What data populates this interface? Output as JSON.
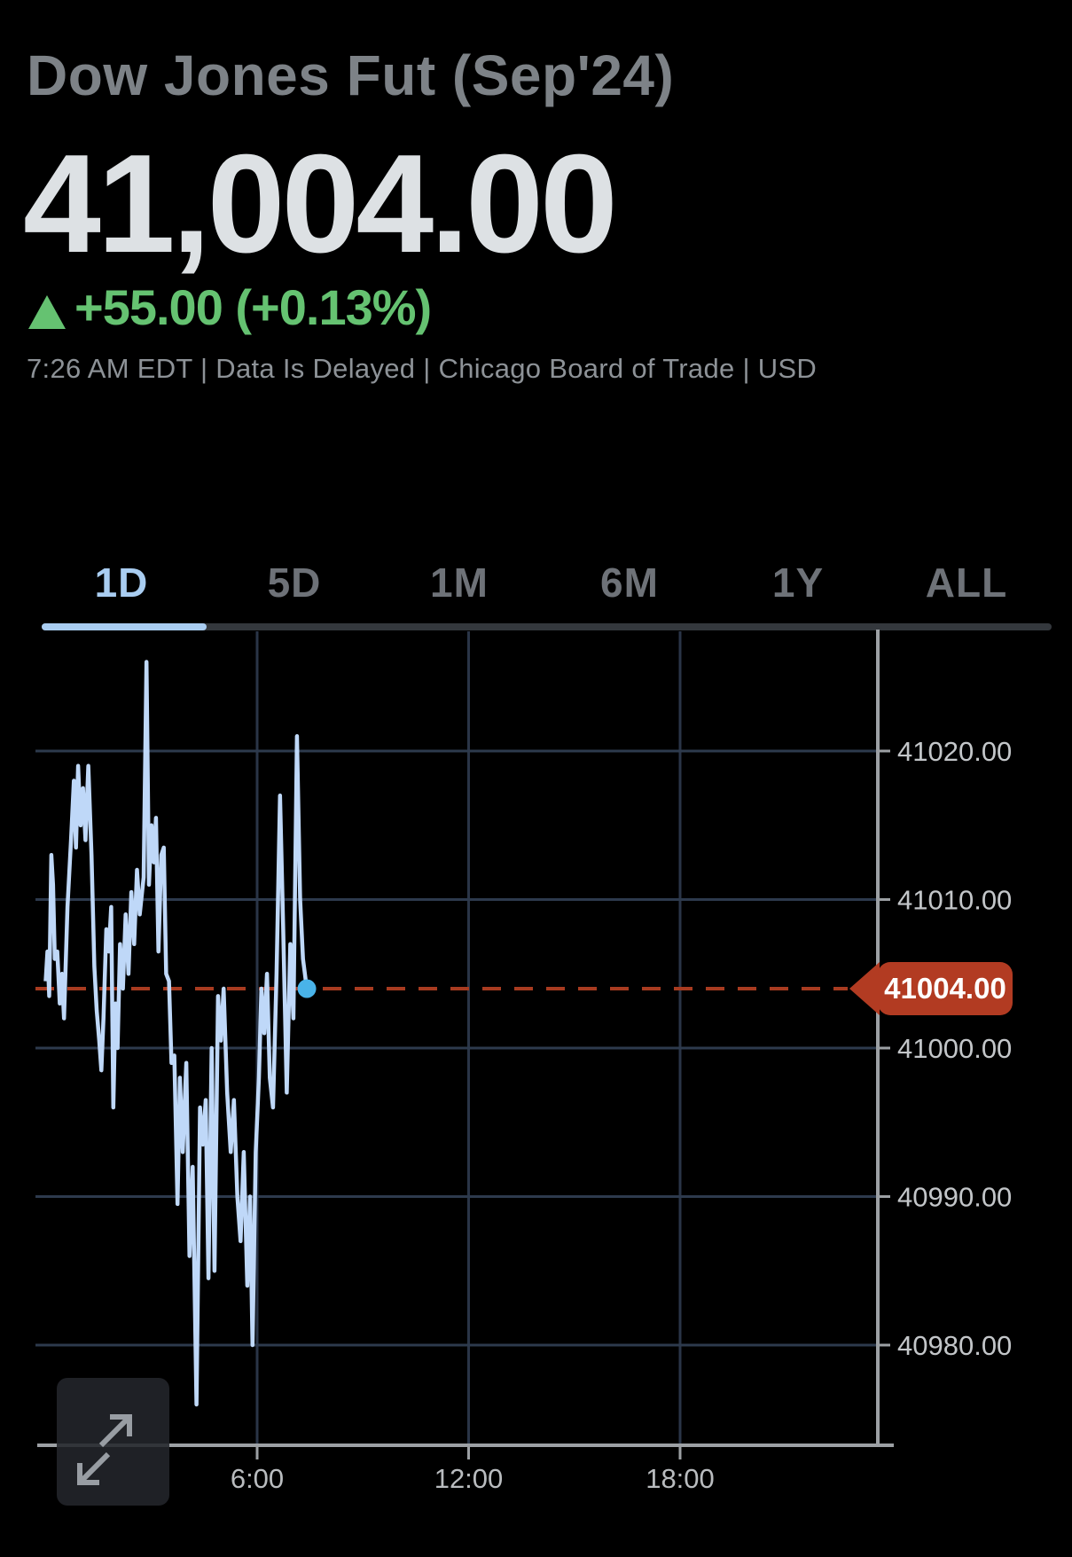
{
  "header": {
    "title": "Dow Jones Fut (Sep'24)",
    "price": "41,004.00",
    "change": "+55.00 (+0.13%)",
    "change_direction": "up",
    "status_line": "7:26 AM EDT | Data Is Delayed | Chicago Board of Trade | USD"
  },
  "tabs": [
    {
      "label": "1D",
      "active": true
    },
    {
      "label": "5D",
      "active": false
    },
    {
      "label": "1M",
      "active": false
    },
    {
      "label": "6M",
      "active": false
    },
    {
      "label": "1Y",
      "active": false
    },
    {
      "label": "ALL",
      "active": false
    }
  ],
  "colors": {
    "up_green": "#65c271",
    "price_text": "#dde1e4",
    "title_gray": "#7d8287",
    "line_blue": "#bfd8f8",
    "dot_blue": "#49b3e9",
    "last_price_red": "#b23b22",
    "dashed_red": "#a83b20",
    "grid": "#2d3a4d",
    "axis": "#9ca0a4",
    "tick_label": "#c3c6c9",
    "active_tab_blue": "#a9cdf1",
    "inactive_tab": "#6e7278"
  },
  "icons": {
    "up_arrow": "up-triangle",
    "expand": "diagonal-expand-arrows"
  },
  "chart_data": {
    "type": "line",
    "title": "Dow Jones Fut (Sep'24) 1D intraday",
    "x_unit": "hour_of_day",
    "xlim": [
      0,
      24
    ],
    "ylim": [
      40973,
      41028
    ],
    "grid": true,
    "x_ticks": [
      {
        "t": 6,
        "label": "6:00"
      },
      {
        "t": 12,
        "label": "12:00"
      },
      {
        "t": 18,
        "label": "18:00"
      }
    ],
    "y_ticks": [
      {
        "v": 41020,
        "label": "41020.00"
      },
      {
        "v": 41010,
        "label": "41010.00"
      },
      {
        "v": 41000,
        "label": "41000.00"
      },
      {
        "v": 40990,
        "label": "40990.00"
      },
      {
        "v": 40980,
        "label": "40980.00"
      }
    ],
    "last_price": 41004.0,
    "last_price_label": "41004.00",
    "last_time": 7.41,
    "points": [
      [
        0.0,
        41004.5
      ],
      [
        0.05,
        41006.5
      ],
      [
        0.1,
        41003.5
      ],
      [
        0.16,
        41013
      ],
      [
        0.21,
        41011
      ],
      [
        0.26,
        41006
      ],
      [
        0.33,
        41006.5
      ],
      [
        0.4,
        41003
      ],
      [
        0.46,
        41005
      ],
      [
        0.52,
        41002
      ],
      [
        0.62,
        41009.5
      ],
      [
        0.72,
        41014
      ],
      [
        0.8,
        41018
      ],
      [
        0.86,
        41013.5
      ],
      [
        0.92,
        41019
      ],
      [
        0.99,
        41015
      ],
      [
        1.06,
        41017.5
      ],
      [
        1.13,
        41014
      ],
      [
        1.21,
        41019
      ],
      [
        1.3,
        41013
      ],
      [
        1.38,
        41005.5
      ],
      [
        1.45,
        41002.5
      ],
      [
        1.52,
        41000.5
      ],
      [
        1.58,
        40998.5
      ],
      [
        1.64,
        41002
      ],
      [
        1.72,
        41008
      ],
      [
        1.79,
        41006.5
      ],
      [
        1.86,
        41009.5
      ],
      [
        1.92,
        40996
      ],
      [
        1.98,
        41003
      ],
      [
        2.04,
        41000
      ],
      [
        2.11,
        41007
      ],
      [
        2.19,
        41004
      ],
      [
        2.27,
        41009
      ],
      [
        2.35,
        41005
      ],
      [
        2.43,
        41010.5
      ],
      [
        2.51,
        41007
      ],
      [
        2.59,
        41012
      ],
      [
        2.67,
        41009
      ],
      [
        2.78,
        41011.5
      ],
      [
        2.86,
        41026
      ],
      [
        2.93,
        41011
      ],
      [
        3.0,
        41015
      ],
      [
        3.07,
        41012.5
      ],
      [
        3.13,
        41015.5
      ],
      [
        3.2,
        41006.5
      ],
      [
        3.28,
        41013
      ],
      [
        3.35,
        41013.5
      ],
      [
        3.42,
        41005
      ],
      [
        3.5,
        41004.5
      ],
      [
        3.57,
        40999
      ],
      [
        3.65,
        40999.5
      ],
      [
        3.74,
        40989.5
      ],
      [
        3.81,
        40998
      ],
      [
        3.89,
        40993
      ],
      [
        3.99,
        40999
      ],
      [
        4.08,
        40986
      ],
      [
        4.17,
        40992
      ],
      [
        4.28,
        40976
      ],
      [
        4.38,
        40996
      ],
      [
        4.46,
        40993.5
      ],
      [
        4.54,
        40996.5
      ],
      [
        4.62,
        40984.5
      ],
      [
        4.71,
        41000
      ],
      [
        4.79,
        40985
      ],
      [
        4.89,
        41003.5
      ],
      [
        4.97,
        41000.5
      ],
      [
        5.05,
        41004
      ],
      [
        5.15,
        40997
      ],
      [
        5.25,
        40993
      ],
      [
        5.34,
        40996.5
      ],
      [
        5.44,
        40990
      ],
      [
        5.53,
        40987
      ],
      [
        5.62,
        40993
      ],
      [
        5.72,
        40984
      ],
      [
        5.8,
        40990
      ],
      [
        5.87,
        40980
      ],
      [
        5.96,
        40993
      ],
      [
        6.05,
        40998
      ],
      [
        6.12,
        41004
      ],
      [
        6.2,
        41001
      ],
      [
        6.28,
        41005
      ],
      [
        6.36,
        40998
      ],
      [
        6.45,
        40996
      ],
      [
        6.55,
        41005
      ],
      [
        6.65,
        41017
      ],
      [
        6.74,
        41008
      ],
      [
        6.84,
        40997
      ],
      [
        6.94,
        41007
      ],
      [
        7.03,
        41002
      ],
      [
        7.13,
        41021
      ],
      [
        7.22,
        41010
      ],
      [
        7.3,
        41006
      ],
      [
        7.41,
        41004
      ]
    ]
  }
}
